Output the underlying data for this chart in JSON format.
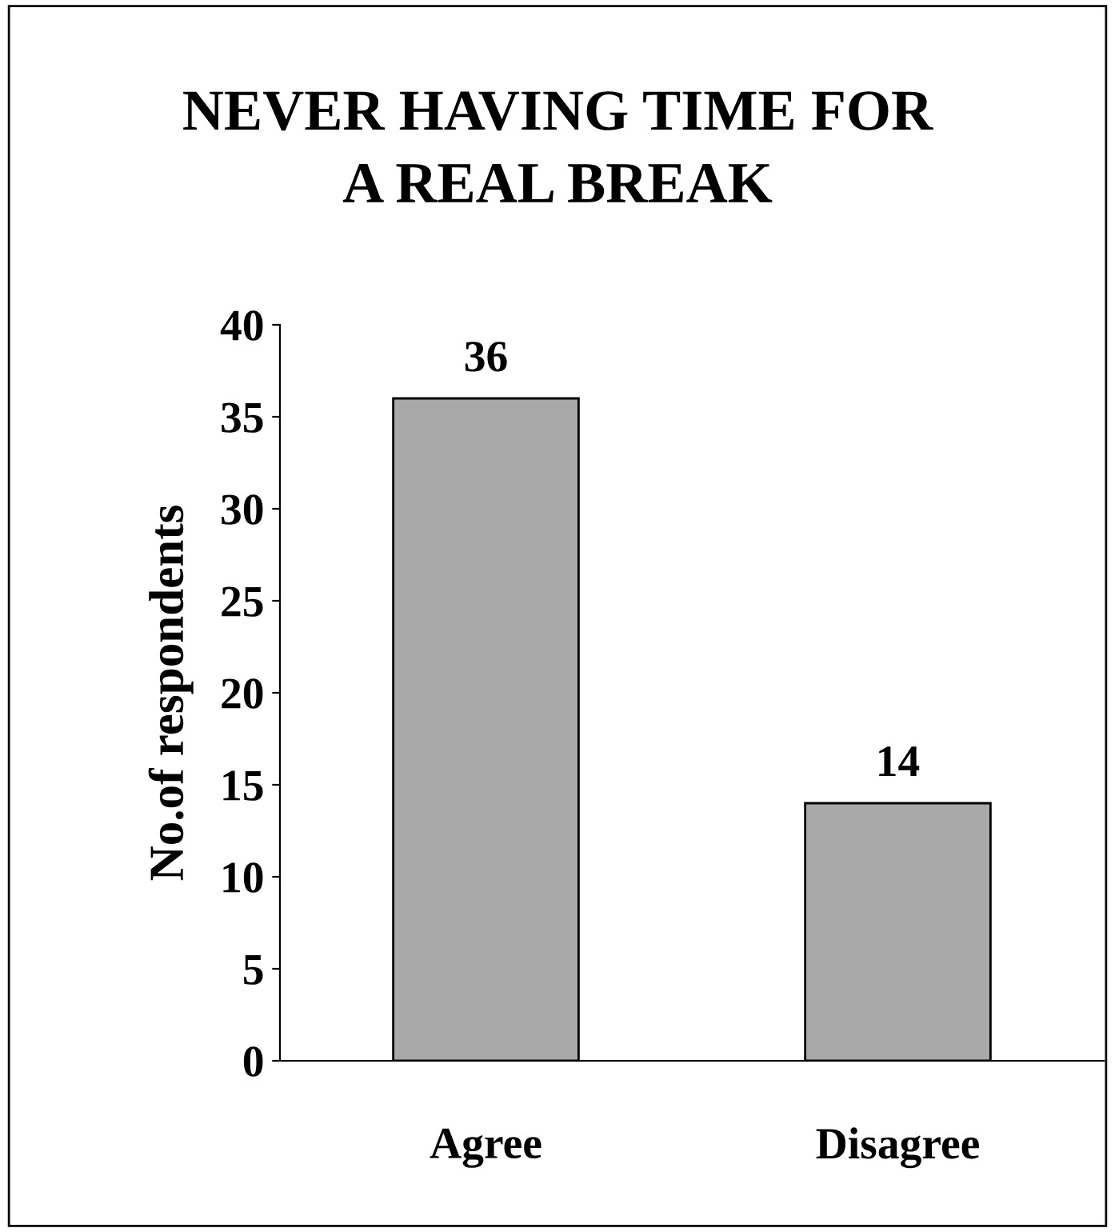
{
  "chart_data": {
    "type": "bar",
    "title": "NEVER HAVING TIME FOR\nA REAL BREAK",
    "ylabel": "No.of respondents",
    "categories": [
      "Agree",
      "Disagree"
    ],
    "values": [
      36,
      14
    ],
    "color": "#a8a8a8",
    "ylim": [
      0,
      40
    ],
    "yticks": [
      0,
      5,
      10,
      15,
      20,
      25,
      30,
      35,
      40
    ],
    "grid": false,
    "data_labels": true,
    "legend": false
  }
}
